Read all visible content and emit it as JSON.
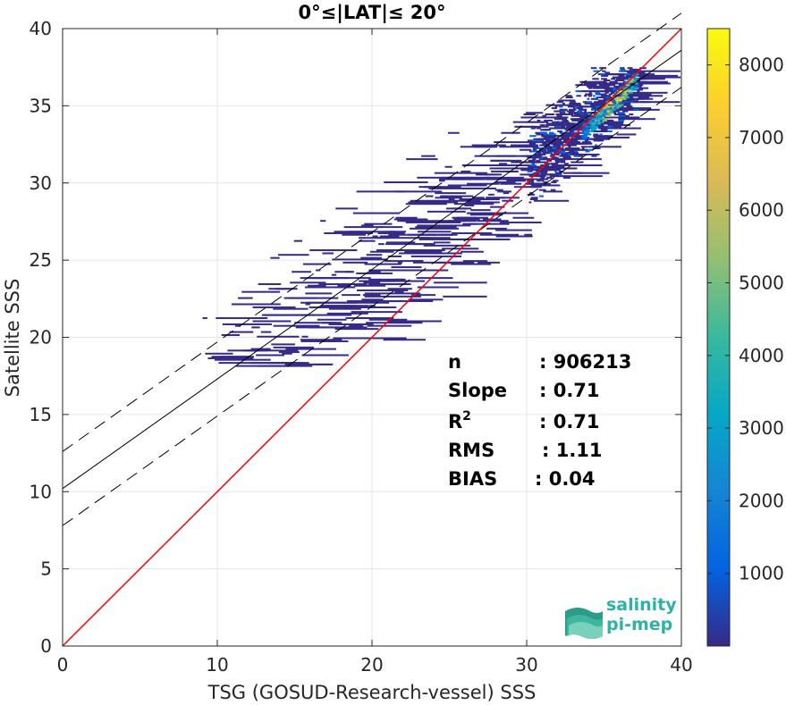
{
  "chart_data": {
    "type": "scatter",
    "subtype": "2d-density-histogram",
    "title": "0°≤|LAT|≤ 20°",
    "xlabel": "TSG (GOSUD-Research-vessel) SSS",
    "ylabel": "Satellite SSS",
    "xlim": [
      0,
      40
    ],
    "ylim": [
      0,
      40
    ],
    "xticks": [
      0,
      10,
      20,
      30,
      40
    ],
    "yticks": [
      0,
      5,
      10,
      15,
      20,
      25,
      30,
      35,
      40
    ],
    "grid": true,
    "one_to_one_line": {
      "color": "#ff0000",
      "x": [
        0,
        40
      ],
      "y": [
        0,
        40
      ]
    },
    "fit_line": {
      "color": "#000000",
      "intercept": 10.2,
      "slope": 0.71,
      "x": [
        0,
        40
      ],
      "y": [
        10.2,
        38.6
      ]
    },
    "fit_bounds": {
      "color": "#000000",
      "style": "dashed",
      "upper_intercept": 12.6,
      "lower_intercept": 7.8,
      "slope": 0.71
    },
    "colorbar": {
      "min": 0,
      "max": 8500,
      "ticks": [
        1000,
        2000,
        3000,
        4000,
        5000,
        6000,
        7000,
        8000
      ],
      "colormap": "parula",
      "colors": [
        "#352a87",
        "#0363e1",
        "#1485d4",
        "#06a7c6",
        "#38b99e",
        "#92bf73",
        "#d9ba56",
        "#fcce2e",
        "#f9fb0e"
      ]
    },
    "density_regions": [
      {
        "x": [
          33,
          37.5
        ],
        "y": [
          31,
          37.2
        ],
        "level": "high"
      },
      {
        "x": [
          25,
          37
        ],
        "y": [
          27,
          37.5
        ],
        "level": "medium"
      },
      {
        "x": [
          9,
          37
        ],
        "y": [
          18,
          37
        ],
        "level": "low"
      }
    ],
    "stats": [
      {
        "label": "n",
        "value": ": 906213"
      },
      {
        "label": "Slope",
        "value": ": 0.71"
      },
      {
        "label": "R",
        "sup": "2",
        "value": ": 0.71"
      },
      {
        "label": "RMS",
        "value": ": 1.11"
      },
      {
        "label": "BIAS",
        "value": ": 0.04"
      }
    ]
  },
  "logo": {
    "line1": "salinity",
    "line2": "pi-mep"
  }
}
